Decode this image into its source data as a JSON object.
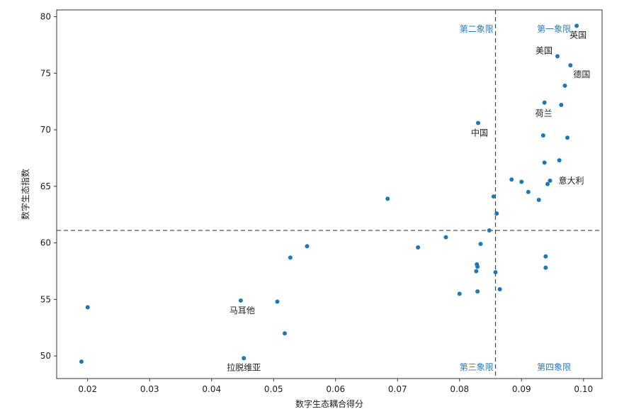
{
  "chart_data": {
    "type": "scatter",
    "xlabel": "数字生态耦合得分",
    "ylabel": "数字生态指数",
    "xlim": [
      0.015,
      0.103
    ],
    "ylim": [
      48,
      80.6
    ],
    "xticks": [
      "0.02",
      "0.03",
      "0.04",
      "0.05",
      "0.06",
      "0.07",
      "0.08",
      "0.09",
      "0.10"
    ],
    "xtick_values": [
      0.02,
      0.03,
      0.04,
      0.05,
      0.06,
      0.07,
      0.08,
      0.09,
      0.1
    ],
    "yticks": [
      "50",
      "55",
      "60",
      "65",
      "70",
      "75",
      "80"
    ],
    "ytick_values": [
      50,
      55,
      60,
      65,
      70,
      75,
      80
    ],
    "grid": false,
    "point_color": "#1f77b4",
    "annotation_color": "#2a7fc4",
    "reference_lines": {
      "x": 0.0858,
      "y": 61.1
    },
    "quadrant_labels": [
      {
        "text": "第一象限",
        "x": 0.0925,
        "y": 78.9
      },
      {
        "text": "第二象限",
        "x": 0.08,
        "y": 78.9
      },
      {
        "text": "第三象限",
        "x": 0.08,
        "y": 49.0
      },
      {
        "text": "第四象限",
        "x": 0.0925,
        "y": 49.0
      }
    ],
    "points": [
      {
        "x": 0.0989,
        "y": 79.2,
        "label": "英国"
      },
      {
        "x": 0.0958,
        "y": 76.5,
        "label": "美国"
      },
      {
        "x": 0.0979,
        "y": 75.7,
        "label": "德国"
      },
      {
        "x": 0.097,
        "y": 73.9,
        "label": ""
      },
      {
        "x": 0.0937,
        "y": 72.4,
        "label": "荷兰"
      },
      {
        "x": 0.0964,
        "y": 72.2,
        "label": ""
      },
      {
        "x": 0.083,
        "y": 70.6,
        "label": "中国"
      },
      {
        "x": 0.0935,
        "y": 69.5,
        "label": ""
      },
      {
        "x": 0.0974,
        "y": 69.3,
        "label": ""
      },
      {
        "x": 0.0937,
        "y": 67.1,
        "label": ""
      },
      {
        "x": 0.0961,
        "y": 67.3,
        "label": ""
      },
      {
        "x": 0.0884,
        "y": 65.6,
        "label": ""
      },
      {
        "x": 0.09,
        "y": 65.4,
        "label": ""
      },
      {
        "x": 0.0946,
        "y": 65.5,
        "label": "意大利"
      },
      {
        "x": 0.0942,
        "y": 65.2,
        "label": ""
      },
      {
        "x": 0.0911,
        "y": 64.5,
        "label": ""
      },
      {
        "x": 0.0928,
        "y": 63.8,
        "label": ""
      },
      {
        "x": 0.0855,
        "y": 64.1,
        "label": ""
      },
      {
        "x": 0.0684,
        "y": 63.9,
        "label": ""
      },
      {
        "x": 0.086,
        "y": 62.6,
        "label": ""
      },
      {
        "x": 0.0848,
        "y": 61.1,
        "label": ""
      },
      {
        "x": 0.0778,
        "y": 60.5,
        "label": ""
      },
      {
        "x": 0.0834,
        "y": 59.9,
        "label": ""
      },
      {
        "x": 0.0733,
        "y": 59.6,
        "label": ""
      },
      {
        "x": 0.0554,
        "y": 59.7,
        "label": ""
      },
      {
        "x": 0.0939,
        "y": 58.8,
        "label": ""
      },
      {
        "x": 0.0527,
        "y": 58.7,
        "label": ""
      },
      {
        "x": 0.0828,
        "y": 58.1,
        "label": ""
      },
      {
        "x": 0.0829,
        "y": 57.9,
        "label": ""
      },
      {
        "x": 0.0939,
        "y": 57.8,
        "label": ""
      },
      {
        "x": 0.0827,
        "y": 57.5,
        "label": ""
      },
      {
        "x": 0.0858,
        "y": 57.4,
        "label": ""
      },
      {
        "x": 0.0865,
        "y": 55.9,
        "label": ""
      },
      {
        "x": 0.0829,
        "y": 55.7,
        "label": ""
      },
      {
        "x": 0.08,
        "y": 55.5,
        "label": ""
      },
      {
        "x": 0.0447,
        "y": 54.9,
        "label": "马耳他"
      },
      {
        "x": 0.0506,
        "y": 54.8,
        "label": ""
      },
      {
        "x": 0.02,
        "y": 54.3,
        "label": ""
      },
      {
        "x": 0.0518,
        "y": 52.0,
        "label": ""
      },
      {
        "x": 0.0452,
        "y": 49.8,
        "label": "拉脱维亚"
      },
      {
        "x": 0.019,
        "y": 49.5,
        "label": ""
      }
    ]
  }
}
